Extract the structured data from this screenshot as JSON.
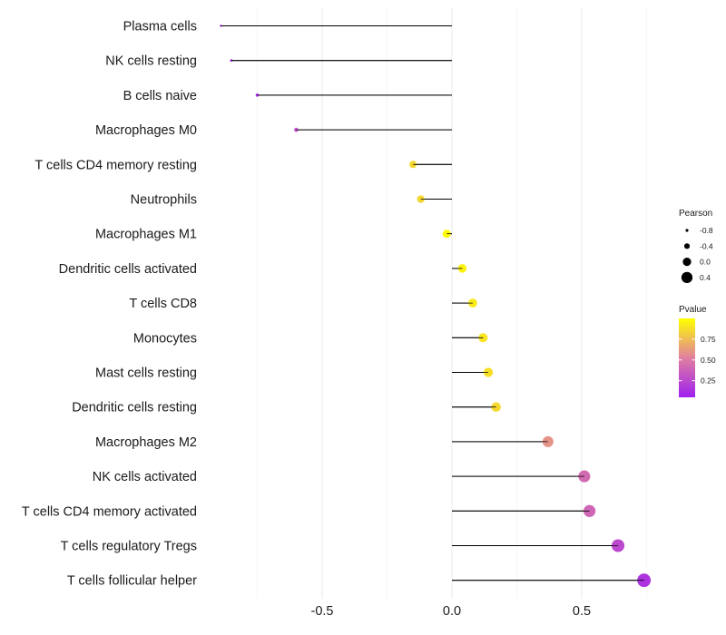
{
  "chart_data": {
    "type": "lollipop",
    "categories": [
      "Plasma cells",
      "NK cells resting",
      "B cells naive",
      "Macrophages M0",
      "T cells CD4 memory resting",
      "Neutrophils",
      "Macrophages M1",
      "Dendritic cells activated",
      "T cells CD8",
      "Monocytes",
      "Mast cells resting",
      "Dendritic cells resting",
      "Macrophages M2",
      "NK cells activated",
      "T cells CD4 memory activated",
      "T cells regulatory  Tregs",
      "T cells follicular helper"
    ],
    "values": [
      -0.89,
      -0.85,
      -0.75,
      -0.6,
      -0.15,
      -0.12,
      -0.02,
      0.04,
      0.08,
      0.12,
      0.14,
      0.17,
      0.37,
      0.51,
      0.53,
      0.64,
      0.74
    ],
    "pvalues": [
      0.1,
      0.1,
      0.1,
      0.3,
      0.85,
      0.85,
      0.99,
      0.95,
      0.92,
      0.9,
      0.88,
      0.86,
      0.6,
      0.42,
      0.4,
      0.25,
      0.15
    ],
    "xlim": [
      -0.9,
      0.77
    ],
    "xticks": [
      -0.5,
      0.0,
      0.5
    ],
    "xtick_labels": [
      "-0.5",
      "0.0",
      "0.5"
    ],
    "title": "",
    "xlabel": "",
    "ylabel": "",
    "legend": {
      "size": {
        "title": "Pearson",
        "values": [
          -0.8,
          -0.4,
          0.0,
          0.4
        ],
        "labels": [
          "-0.8",
          "-0.4",
          "0.0",
          "0.4"
        ]
      },
      "color": {
        "title": "Pvalue",
        "breaks": [
          0.25,
          0.5,
          0.75
        ],
        "labels": [
          "0.25",
          "0.50",
          "0.75"
        ],
        "low_color": "#a020f0",
        "mid_color": "#e07fa0",
        "high_color": "#ffff00",
        "range": [
          0.05,
          1.0
        ]
      },
      "placement": "right"
    },
    "grid": true
  }
}
